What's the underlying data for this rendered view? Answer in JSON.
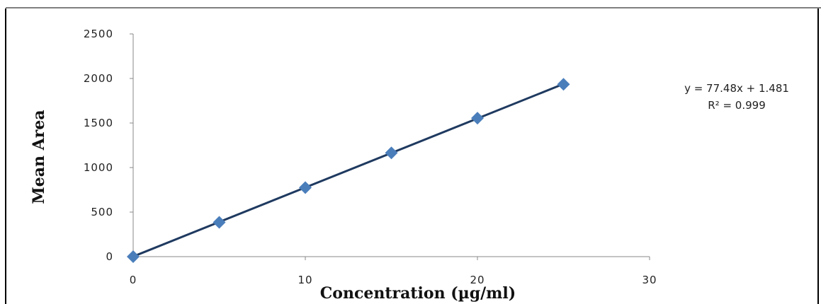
{
  "chart_data": {
    "type": "scatter",
    "title": "",
    "xlabel": "Concentration (µg/ml)",
    "ylabel": "Mean Area",
    "xlim": [
      0,
      30
    ],
    "ylim": [
      0,
      2500
    ],
    "xticks": [
      "0",
      "10",
      "20",
      "30"
    ],
    "yticks": [
      "0",
      "500",
      "1000",
      "1500",
      "2000",
      "2500"
    ],
    "grid": false,
    "series": [
      {
        "marker": "diamond",
        "color": "#4a7ebb",
        "points": [
          {
            "x": 0,
            "y": 0
          },
          {
            "x": 5,
            "y": 385
          },
          {
            "x": 10,
            "y": 775
          },
          {
            "x": 15,
            "y": 1165
          },
          {
            "x": 20,
            "y": 1555
          },
          {
            "x": 25,
            "y": 1935
          }
        ]
      }
    ],
    "trendline": {
      "slope": 77.48,
      "intercept": 1.481,
      "color": "#1f3a60",
      "equation": "y = 77.48x + 1.481",
      "r_squared": "R² = 0.999"
    }
  }
}
